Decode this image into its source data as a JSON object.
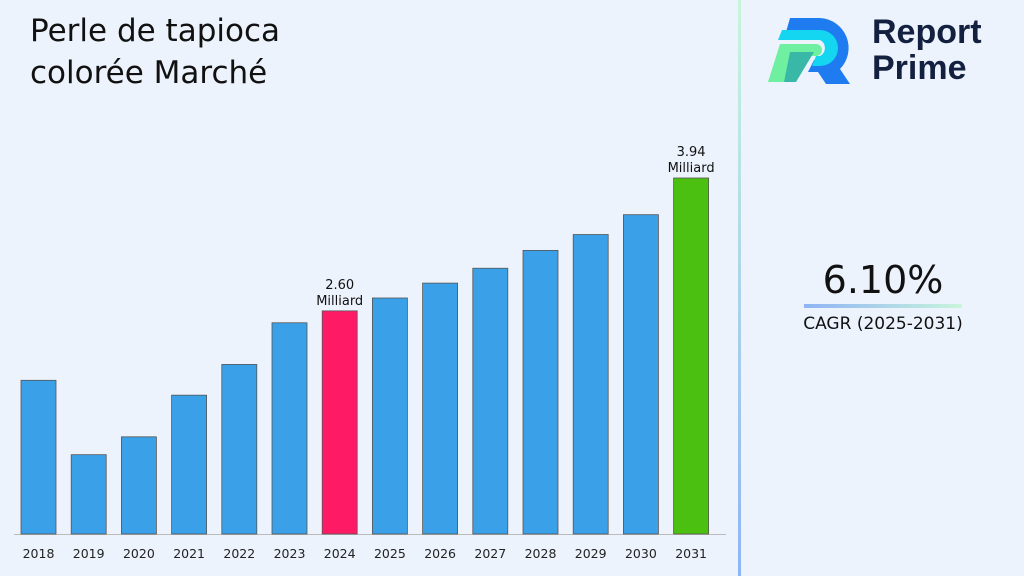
{
  "title": "Perle de tapioca\ncolorée Marché",
  "logo": {
    "line1": "Report",
    "line2": "Prime"
  },
  "cagr": {
    "value": "6.10%",
    "label": "CAGR (2025-2031)"
  },
  "colors": {
    "default_bar": "#3aa0e8",
    "highlight_2024": "#ff1a66",
    "highlight_2031": "#4cc010",
    "background": "#edf3fd"
  },
  "chart_data": {
    "type": "bar",
    "title": "Perle de tapioca colorée Marché",
    "categories": [
      "2018",
      "2019",
      "2020",
      "2021",
      "2022",
      "2023",
      "2024",
      "2025",
      "2026",
      "2027",
      "2028",
      "2029",
      "2030",
      "2031"
    ],
    "values": [
      1.9,
      1.15,
      1.33,
      1.75,
      2.06,
      2.48,
      2.6,
      2.73,
      2.88,
      3.03,
      3.21,
      3.37,
      3.57,
      3.94
    ],
    "unit": "Milliard",
    "data_labels": {
      "2024": [
        "2.60",
        "Milliard"
      ],
      "2031": [
        "3.94",
        "Milliard"
      ]
    },
    "ylim": [
      0.35,
      4.0
    ],
    "grid": false,
    "xlabel": "",
    "ylabel": ""
  }
}
